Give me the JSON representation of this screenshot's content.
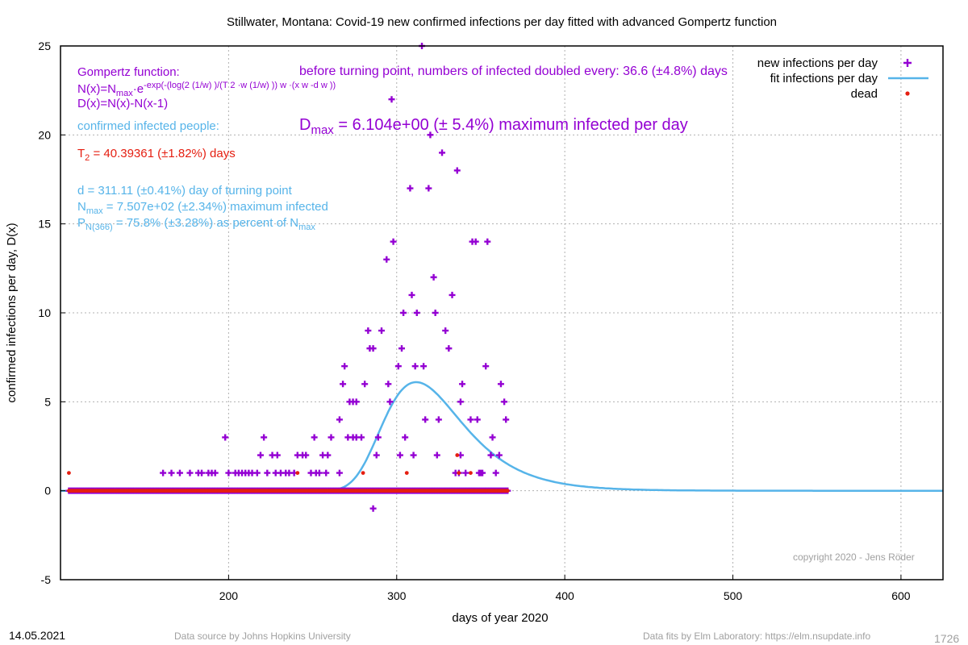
{
  "chart_data": {
    "type": "scatter",
    "title": "Stillwater,  Montana: Covid-19 new confirmed infections per day fitted with advanced Gompertz function",
    "xlabel": "days of year 2020",
    "ylabel": "confirmed infections per day, D(x)",
    "xlim": [
      100,
      625
    ],
    "ylim": [
      -5,
      25
    ],
    "xticks": [
      200,
      300,
      400,
      500,
      600
    ],
    "yticks": [
      -5,
      0,
      5,
      10,
      15,
      20,
      25
    ],
    "grid": true,
    "legend_position": "top-right",
    "legend": {
      "new": "new infections per day",
      "fit": "fit infections per day",
      "dead": "dead"
    },
    "colors": {
      "new": "#9400d3",
      "fit": "#56b4e9",
      "dead": "#e51e10",
      "text_red": "#e51e10"
    },
    "fit_params": {
      "d": 311.11,
      "T2": 40.39361,
      "Nmax": 750.7,
      "Dmax": 6.104,
      "w_description": "advanced Gompertz"
    },
    "fit_range": [
      100,
      625
    ],
    "data_range": [
      105,
      366
    ],
    "series_new_infections": [
      {
        "x": 161,
        "y": 1
      },
      {
        "x": 166,
        "y": 1
      },
      {
        "x": 171,
        "y": 1
      },
      {
        "x": 177,
        "y": 1
      },
      {
        "x": 182,
        "y": 1
      },
      {
        "x": 184,
        "y": 1
      },
      {
        "x": 188,
        "y": 1
      },
      {
        "x": 190,
        "y": 1
      },
      {
        "x": 192,
        "y": 1
      },
      {
        "x": 198,
        "y": 3
      },
      {
        "x": 200,
        "y": 1
      },
      {
        "x": 204,
        "y": 1
      },
      {
        "x": 206,
        "y": 1
      },
      {
        "x": 208,
        "y": 1
      },
      {
        "x": 210,
        "y": 1
      },
      {
        "x": 212,
        "y": 1
      },
      {
        "x": 214,
        "y": 1
      },
      {
        "x": 217,
        "y": 1
      },
      {
        "x": 219,
        "y": 2
      },
      {
        "x": 221,
        "y": 3
      },
      {
        "x": 223,
        "y": 1
      },
      {
        "x": 226,
        "y": 2
      },
      {
        "x": 228,
        "y": 1
      },
      {
        "x": 229,
        "y": 2
      },
      {
        "x": 231,
        "y": 1
      },
      {
        "x": 234,
        "y": 1
      },
      {
        "x": 236,
        "y": 1
      },
      {
        "x": 239,
        "y": 1
      },
      {
        "x": 241,
        "y": 2
      },
      {
        "x": 244,
        "y": 2
      },
      {
        "x": 246,
        "y": 2
      },
      {
        "x": 249,
        "y": 1
      },
      {
        "x": 251,
        "y": 3
      },
      {
        "x": 252,
        "y": 1
      },
      {
        "x": 254,
        "y": 1
      },
      {
        "x": 256,
        "y": 2
      },
      {
        "x": 258,
        "y": 1
      },
      {
        "x": 259,
        "y": 2
      },
      {
        "x": 261,
        "y": 3
      },
      {
        "x": 266,
        "y": 1
      },
      {
        "x": 266,
        "y": 4
      },
      {
        "x": 268,
        "y": 6
      },
      {
        "x": 269,
        "y": 7
      },
      {
        "x": 271,
        "y": 3
      },
      {
        "x": 272,
        "y": 5
      },
      {
        "x": 274,
        "y": 3
      },
      {
        "x": 274,
        "y": 5
      },
      {
        "x": 276,
        "y": 5
      },
      {
        "x": 276,
        "y": 3
      },
      {
        "x": 279,
        "y": 3
      },
      {
        "x": 281,
        "y": 6
      },
      {
        "x": 283,
        "y": 9
      },
      {
        "x": 284,
        "y": 8
      },
      {
        "x": 286,
        "y": -1
      },
      {
        "x": 286,
        "y": 8
      },
      {
        "x": 288,
        "y": 2
      },
      {
        "x": 289,
        "y": 3
      },
      {
        "x": 291,
        "y": 9
      },
      {
        "x": 294,
        "y": 13
      },
      {
        "x": 295,
        "y": 6
      },
      {
        "x": 296,
        "y": 5
      },
      {
        "x": 297,
        "y": 22
      },
      {
        "x": 298,
        "y": 14
      },
      {
        "x": 301,
        "y": 7
      },
      {
        "x": 302,
        "y": 2
      },
      {
        "x": 303,
        "y": 8
      },
      {
        "x": 304,
        "y": 10
      },
      {
        "x": 305,
        "y": 3
      },
      {
        "x": 308,
        "y": 17
      },
      {
        "x": 309,
        "y": 11
      },
      {
        "x": 310,
        "y": 2
      },
      {
        "x": 311,
        "y": 7
      },
      {
        "x": 312,
        "y": 10
      },
      {
        "x": 315,
        "y": 25
      },
      {
        "x": 316,
        "y": 7
      },
      {
        "x": 317,
        "y": 4
      },
      {
        "x": 319,
        "y": 17
      },
      {
        "x": 320,
        "y": 20
      },
      {
        "x": 322,
        "y": 12
      },
      {
        "x": 323,
        "y": 10
      },
      {
        "x": 324,
        "y": 2
      },
      {
        "x": 325,
        "y": 4
      },
      {
        "x": 327,
        "y": 19
      },
      {
        "x": 329,
        "y": 9
      },
      {
        "x": 331,
        "y": 8
      },
      {
        "x": 333,
        "y": 11
      },
      {
        "x": 335,
        "y": 1
      },
      {
        "x": 336,
        "y": 18
      },
      {
        "x": 337,
        "y": 1
      },
      {
        "x": 338,
        "y": 2
      },
      {
        "x": 338,
        "y": 5
      },
      {
        "x": 339,
        "y": 6
      },
      {
        "x": 341,
        "y": 1
      },
      {
        "x": 344,
        "y": 4
      },
      {
        "x": 345,
        "y": 14
      },
      {
        "x": 347,
        "y": 14
      },
      {
        "x": 348,
        "y": 4
      },
      {
        "x": 349,
        "y": 1
      },
      {
        "x": 350,
        "y": 1
      },
      {
        "x": 351,
        "y": 1
      },
      {
        "x": 353,
        "y": 7
      },
      {
        "x": 354,
        "y": 14
      },
      {
        "x": 356,
        "y": 2
      },
      {
        "x": 357,
        "y": 3
      },
      {
        "x": 359,
        "y": 1
      },
      {
        "x": 361,
        "y": 2
      },
      {
        "x": 362,
        "y": 6
      },
      {
        "x": 364,
        "y": 5
      },
      {
        "x": 365,
        "y": 4
      }
    ],
    "series_new_zero_x": [
      105,
      366
    ],
    "series_dead": [
      {
        "x": 105,
        "y": 1
      },
      {
        "x": 241,
        "y": 1
      },
      {
        "x": 280,
        "y": 1
      },
      {
        "x": 306,
        "y": 1
      },
      {
        "x": 336,
        "y": 2
      },
      {
        "x": 337,
        "y": 1
      },
      {
        "x": 344,
        "y": 1
      }
    ],
    "series_dead_zero_x": [
      105,
      366
    ]
  },
  "annotations": {
    "gompertz_title": "Gompertz function:",
    "n_formula_a": "N(x)=N",
    "n_formula_sub": "max",
    "n_formula_b": "·e",
    "n_formula_sup": "-exp(-(log(2 (1/w) )/(T 2 ·w (1/w) )) w ·(x w -d w ))",
    "d_formula": "D(x)=N(x)-N(x-1)",
    "doubled": "before turning point, numbers of infected doubled every: 36.6 (±4.8%) days",
    "confirmed": "confirmed infected people:",
    "dmax_a": "D",
    "dmax_sub": "max",
    "dmax_b": " = 6.104e+00 (± 5.4%) maximum infected per day",
    "t2_a": "T",
    "t2_sub": "2",
    "t2_b": " = 40.39361 (±1.82%) days",
    "d_turn": "d = 311.11 (±0.41%) day of turning point",
    "nmax_a": "N",
    "nmax_sub": "max",
    "nmax_b": " = 7.507e+02 (±2.34%) maximum infected",
    "p_a": "P",
    "p_sub": "N(366)",
    "p_b": " = 75.8% (±3.28%) as percent of N",
    "p_sub2": "max",
    "copyright": "copyright 2020 - Jens Röder"
  },
  "footer": {
    "date": "14.05.2021",
    "source": "Data source by Johns Hopkins University",
    "fits": "Data fits by Elm Laboratory: https://elm.nsupdate.info",
    "number": "1726"
  }
}
